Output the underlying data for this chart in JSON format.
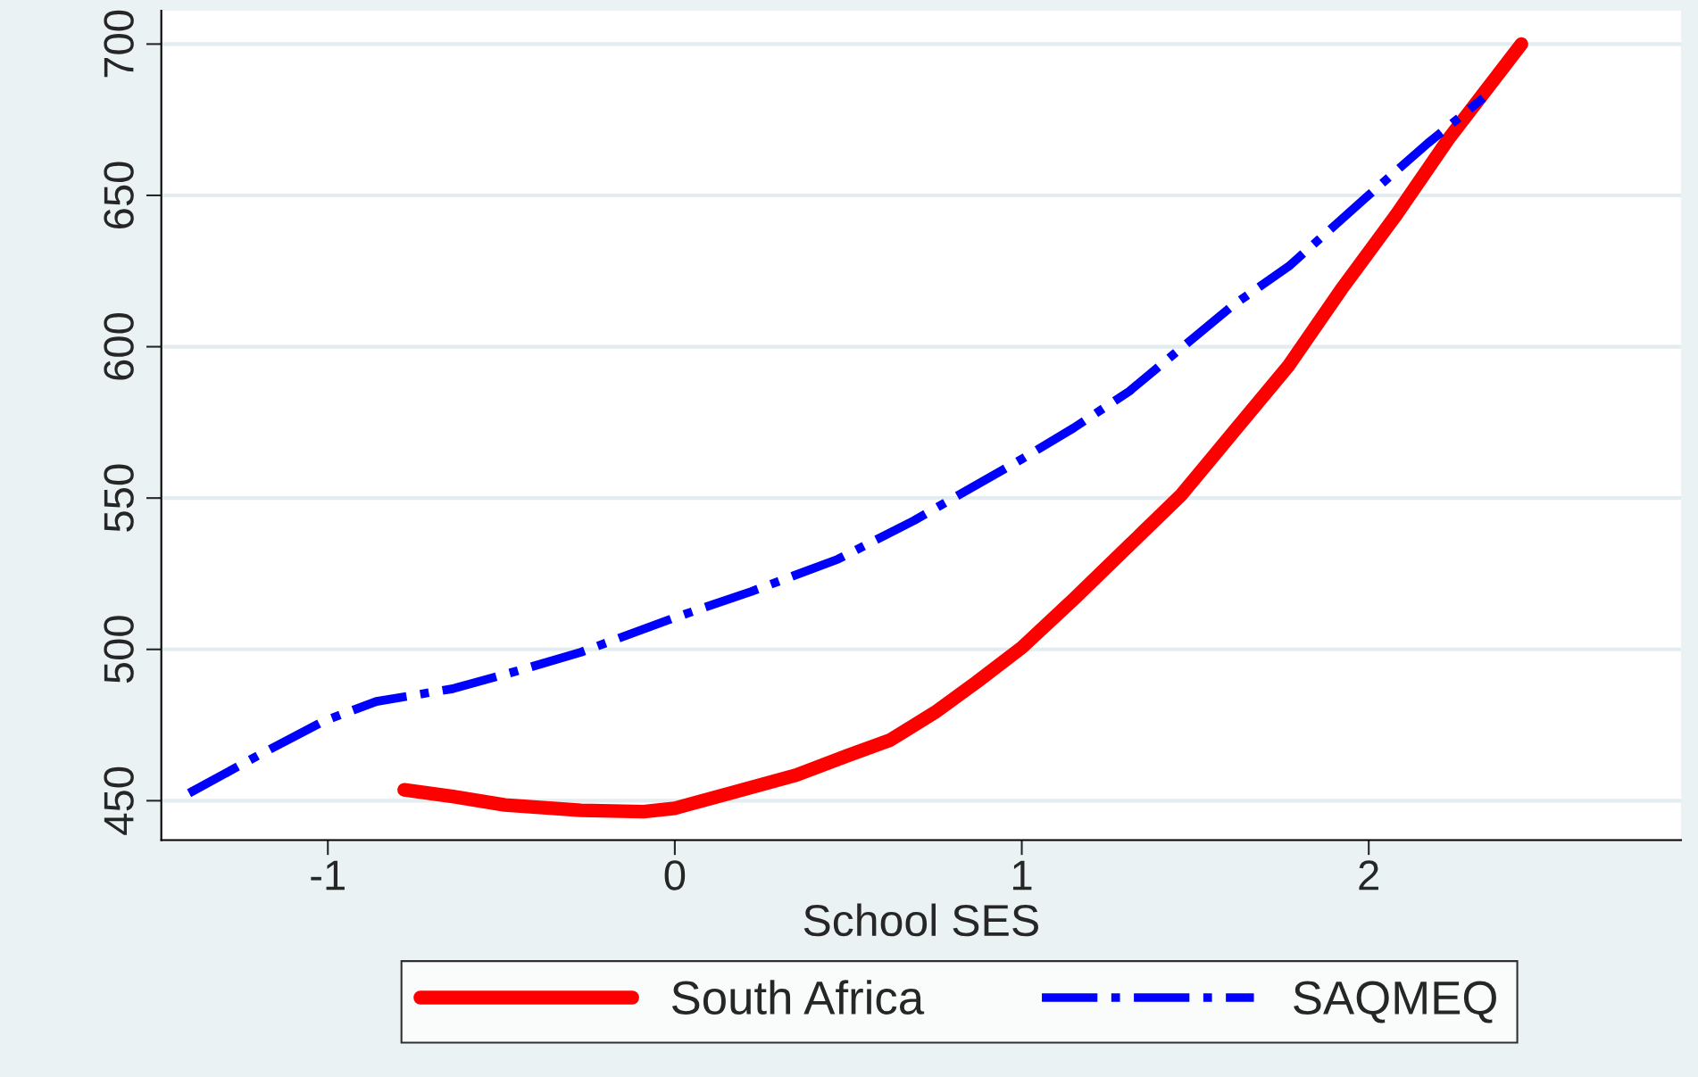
{
  "chart_data": {
    "type": "line",
    "xlabel": "School SES",
    "series": [
      {
        "name": "South Africa",
        "color": "#ff0000",
        "line_style": "solid",
        "x": [
          -0.78,
          -0.64,
          -0.49,
          -0.27,
          -0.09,
          0,
          0.16,
          0.35,
          0.5,
          0.62,
          0.75,
          0.87,
          1.0,
          1.15,
          1.31,
          1.46,
          1.61,
          1.77,
          1.92,
          2.08,
          2.23,
          2.44
        ],
        "values": [
          453.6,
          451.4,
          448.6,
          446.8,
          446.4,
          447.5,
          452.5,
          458.5,
          465,
          470,
          479.2,
          489.2,
          500.6,
          516.6,
          534.4,
          551.1,
          571.8,
          593.9,
          618.8,
          643.7,
          668.7,
          700
        ]
      },
      {
        "name": "SAQMEQ",
        "color": "#0000ff",
        "line_style": "dashdot",
        "x": [
          -1.4,
          -1.2,
          -1.01,
          -0.86,
          -0.64,
          -0.46,
          -0.27,
          0,
          0.22,
          0.47,
          0.69,
          1.0,
          1.15,
          1.31,
          1.46,
          1.61,
          1.77,
          2.0,
          2.17,
          2.33
        ],
        "values": [
          452.5,
          465,
          476.4,
          482.8,
          487,
          492.7,
          499.1,
          510.5,
          519.1,
          529.8,
          542.6,
          562.9,
          573.2,
          585.3,
          599.6,
          613.8,
          626.6,
          650.1,
          667.2,
          682.2
        ]
      }
    ],
    "xlim": [
      -1.48,
      2.9
    ],
    "ylim": [
      437,
      711
    ],
    "xticks": [
      -1,
      0,
      1,
      2
    ],
    "yticks": [
      450,
      500,
      550,
      600,
      650,
      700
    ],
    "grid": "y",
    "legend": "bottom"
  }
}
